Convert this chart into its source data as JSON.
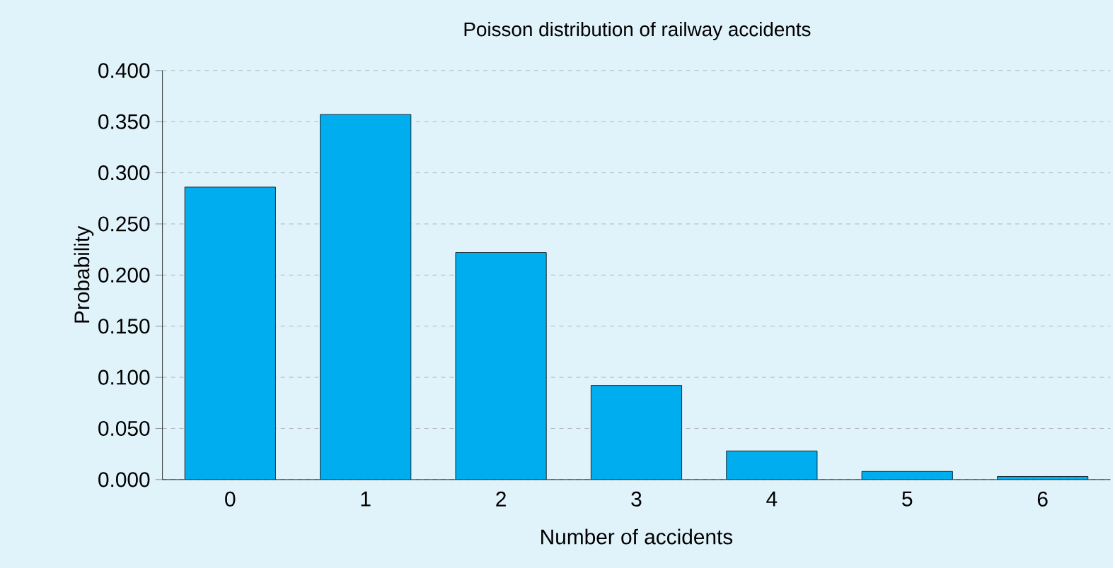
{
  "chart_data": {
    "type": "bar",
    "title": "Poisson distribution of railway accidents",
    "xlabel": "Number of accidents",
    "ylabel": "Probability",
    "categories": [
      "0",
      "1",
      "2",
      "3",
      "4",
      "5",
      "6"
    ],
    "values": [
      0.286,
      0.357,
      0.222,
      0.092,
      0.028,
      0.008,
      0.003
    ],
    "color": "#00aeef",
    "ylim": [
      0,
      0.4
    ],
    "yticks": [
      {
        "value": 0,
        "label": "0.000"
      },
      {
        "value": 0.05,
        "label": "0.050"
      },
      {
        "value": 0.1,
        "label": "0.100"
      },
      {
        "value": 0.15,
        "label": "0.150"
      },
      {
        "value": 0.2,
        "label": "0.200"
      },
      {
        "value": 0.25,
        "label": "0.250"
      },
      {
        "value": 0.3,
        "label": "0.300"
      },
      {
        "value": 0.35,
        "label": "0.350"
      },
      {
        "value": 0.4,
        "label": "0.400"
      }
    ],
    "grid": "y"
  }
}
